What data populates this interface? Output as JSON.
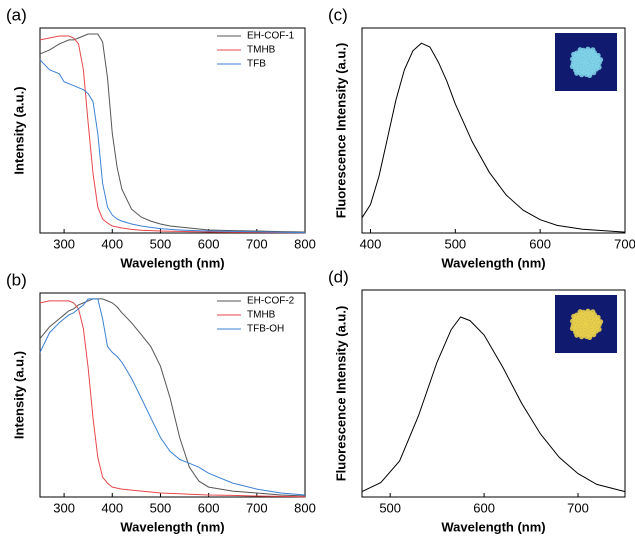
{
  "chart_data": [
    {
      "type": "line",
      "panel_label": "(a)",
      "xlabel": "Wavelength (nm)",
      "ylabel": "Intensity (a.u.)",
      "x": [
        250,
        270,
        290,
        300,
        310,
        320,
        330,
        340,
        350,
        360,
        370,
        380,
        390,
        400,
        410,
        420,
        440,
        460,
        480,
        500,
        520,
        540,
        560,
        580,
        600,
        650,
        700,
        750,
        800
      ],
      "xlim": [
        250,
        800
      ],
      "xticks": [
        300,
        400,
        500,
        600,
        700,
        800
      ],
      "ylim": [
        0,
        1.03
      ],
      "legend": "upper right",
      "series": [
        {
          "name": "EH-COF-1",
          "color": "#555555",
          "values": [
            0.9,
            0.92,
            0.95,
            0.96,
            0.97,
            0.97,
            0.98,
            0.99,
            1.0,
            1.0,
            1.0,
            0.96,
            0.78,
            0.5,
            0.33,
            0.22,
            0.12,
            0.08,
            0.06,
            0.045,
            0.035,
            0.03,
            0.025,
            0.02,
            0.015,
            0.012,
            0.01,
            0.007,
            0.005
          ]
        },
        {
          "name": "TMHB",
          "color": "#e8474b",
          "values": [
            0.97,
            0.98,
            0.99,
            0.99,
            0.99,
            0.98,
            0.95,
            0.82,
            0.55,
            0.3,
            0.13,
            0.07,
            0.05,
            0.035,
            0.03,
            0.025,
            0.018,
            0.014,
            0.012,
            0.01,
            0.009,
            0.008,
            0.007,
            0.006,
            0.005,
            0.004,
            0.003,
            0.002,
            0.001
          ]
        },
        {
          "name": "TFB",
          "color": "#3b82d6",
          "values": [
            0.87,
            0.82,
            0.8,
            0.76,
            0.75,
            0.74,
            0.73,
            0.72,
            0.7,
            0.66,
            0.5,
            0.25,
            0.13,
            0.09,
            0.07,
            0.06,
            0.045,
            0.035,
            0.028,
            0.022,
            0.018,
            0.015,
            0.013,
            0.011,
            0.01,
            0.008,
            0.006,
            0.004,
            0.002
          ]
        }
      ]
    },
    {
      "type": "line",
      "panel_label": "(c)",
      "xlabel": "Wavelength (nm)",
      "ylabel": "Fluorescence Intensity (a.u.)",
      "x": [
        390,
        400,
        410,
        420,
        430,
        440,
        450,
        460,
        470,
        480,
        490,
        500,
        520,
        540,
        560,
        580,
        600,
        620,
        650,
        700
      ],
      "xlim": [
        390,
        700
      ],
      "xticks": [
        400,
        500,
        600,
        700
      ],
      "ylim": [
        0,
        1.08
      ],
      "inset_color": "#7fd3e8",
      "series": [
        {
          "name": null,
          "color": "#000000",
          "values": [
            0.08,
            0.15,
            0.3,
            0.5,
            0.7,
            0.86,
            0.96,
            1.0,
            0.98,
            0.9,
            0.8,
            0.68,
            0.48,
            0.32,
            0.2,
            0.12,
            0.07,
            0.04,
            0.02,
            0.005
          ]
        }
      ]
    },
    {
      "type": "line",
      "panel_label": "(b)",
      "xlabel": "Wavelength (nm)",
      "ylabel": "Intensity (a.u.)",
      "x": [
        250,
        270,
        290,
        300,
        310,
        320,
        330,
        340,
        350,
        360,
        370,
        380,
        390,
        400,
        410,
        420,
        440,
        460,
        480,
        500,
        520,
        540,
        560,
        580,
        600,
        650,
        700,
        750,
        800
      ],
      "xlim": [
        250,
        800
      ],
      "xticks": [
        300,
        400,
        500,
        600,
        700,
        800
      ],
      "ylim": [
        0,
        1.03
      ],
      "legend": "upper right",
      "series": [
        {
          "name": "EH-COF-2",
          "color": "#555555",
          "values": [
            0.8,
            0.86,
            0.9,
            0.92,
            0.94,
            0.95,
            0.97,
            0.98,
            0.99,
            1.0,
            1.0,
            1.0,
            0.99,
            0.98,
            0.96,
            0.93,
            0.88,
            0.82,
            0.76,
            0.66,
            0.5,
            0.3,
            0.15,
            0.08,
            0.05,
            0.03,
            0.02,
            0.01,
            0.005
          ]
        },
        {
          "name": "TMHB",
          "color": "#e8474b",
          "values": [
            0.98,
            0.99,
            0.99,
            0.99,
            0.99,
            0.98,
            0.95,
            0.85,
            0.65,
            0.4,
            0.2,
            0.1,
            0.07,
            0.05,
            0.045,
            0.04,
            0.035,
            0.03,
            0.025,
            0.02,
            0.018,
            0.016,
            0.014,
            0.012,
            0.01,
            0.008,
            0.005,
            0.003,
            0.001
          ]
        },
        {
          "name": "TFB-OH",
          "color": "#3b82d6",
          "values": [
            0.73,
            0.83,
            0.88,
            0.9,
            0.92,
            0.93,
            0.95,
            0.97,
            1.0,
            1.0,
            1.0,
            0.9,
            0.76,
            0.73,
            0.71,
            0.68,
            0.6,
            0.5,
            0.4,
            0.3,
            0.23,
            0.19,
            0.17,
            0.15,
            0.12,
            0.07,
            0.04,
            0.02,
            0.01
          ]
        }
      ]
    },
    {
      "type": "line",
      "panel_label": "(d)",
      "xlabel": "Wavelength (nm)",
      "ylabel": "Fluorescence Intensity (a.u.)",
      "x": [
        470,
        490,
        510,
        530,
        550,
        565,
        575,
        585,
        600,
        620,
        640,
        660,
        680,
        700,
        720,
        750
      ],
      "xlim": [
        470,
        750
      ],
      "xticks": [
        500,
        600,
        700
      ],
      "ylim": [
        0,
        1.15
      ],
      "inset_color": "#e8cf4a",
      "series": [
        {
          "name": null,
          "color": "#000000",
          "values": [
            0.03,
            0.08,
            0.2,
            0.45,
            0.75,
            0.93,
            1.0,
            0.98,
            0.9,
            0.72,
            0.52,
            0.35,
            0.22,
            0.13,
            0.07,
            0.03
          ]
        }
      ]
    }
  ]
}
